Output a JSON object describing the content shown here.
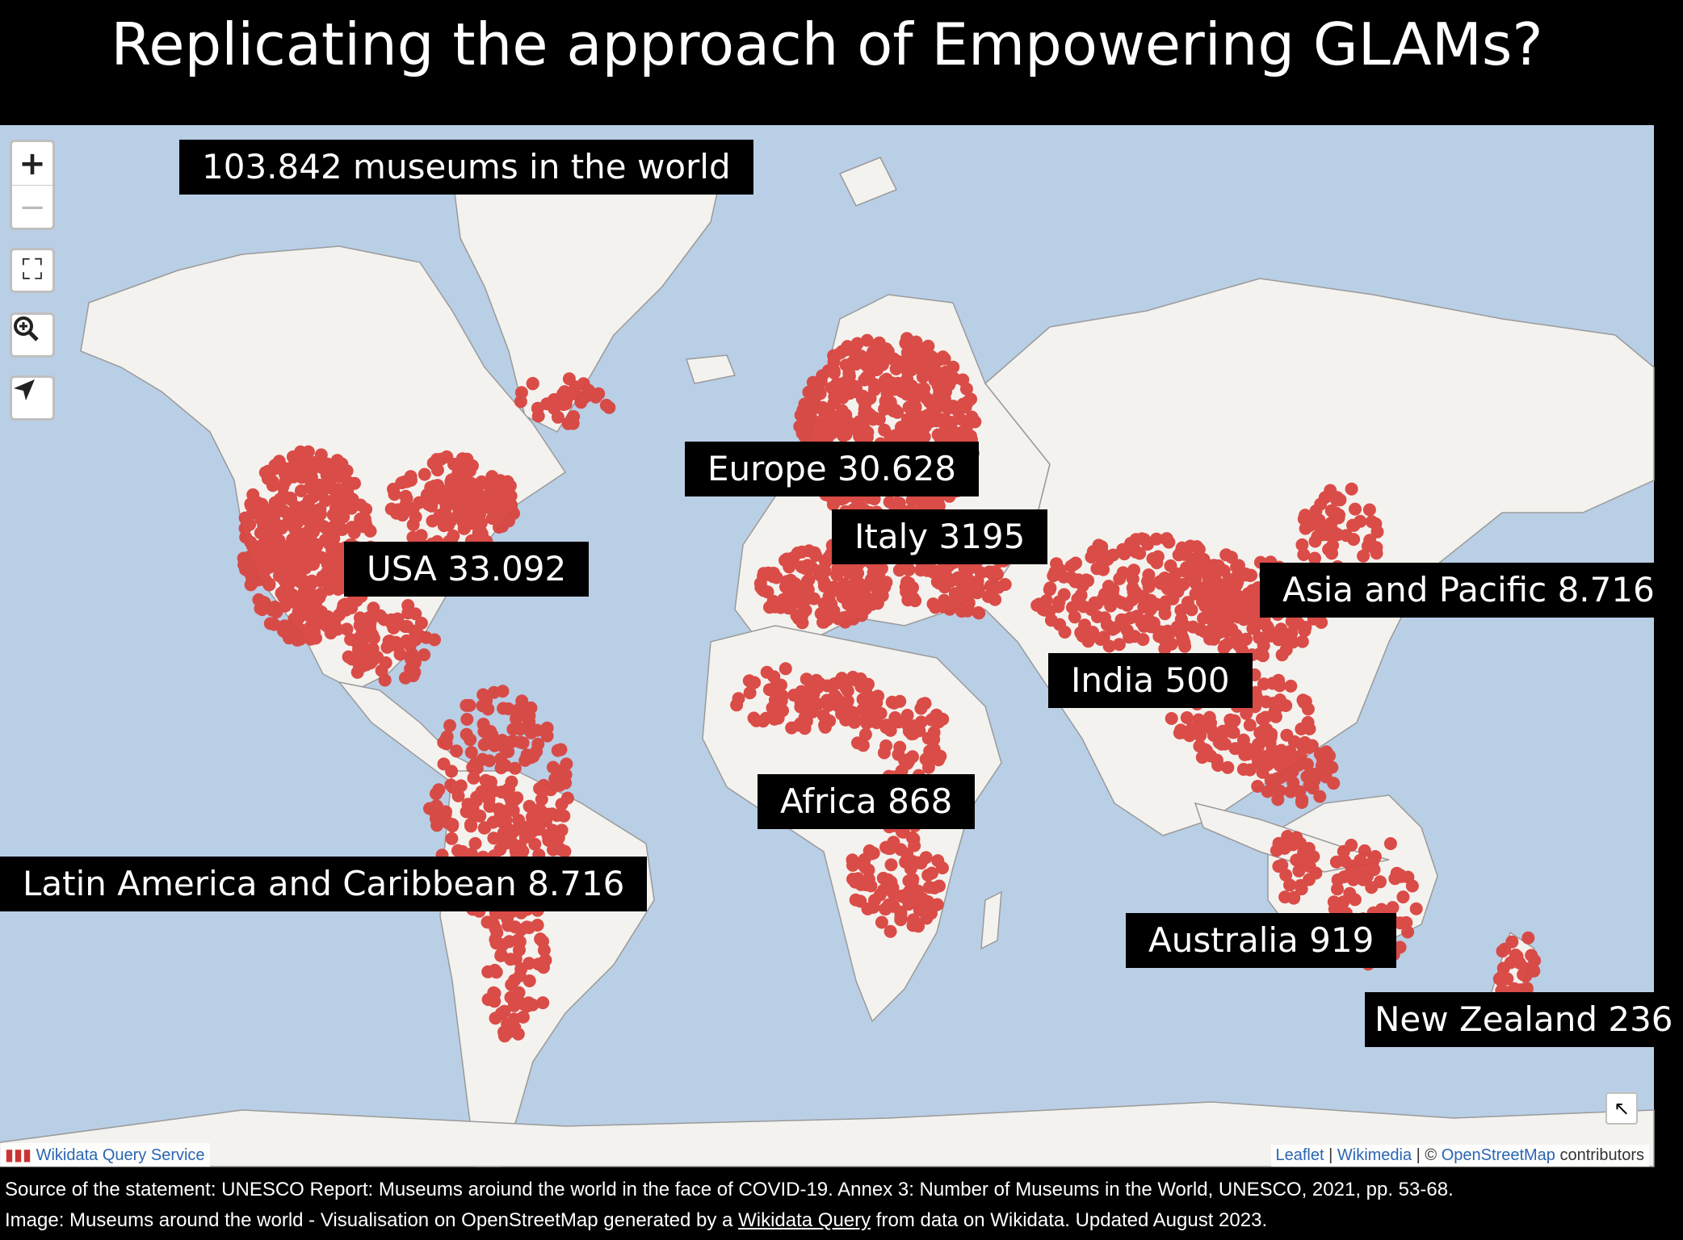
{
  "title": "Replicating the approach of Empowering GLAMs?",
  "map": {
    "controls": {
      "zoom_in": "+",
      "zoom_out": "−",
      "fullscreen_icon": "fullscreen-icon",
      "zoom_box_icon": "magnifier-icon",
      "locate_icon": "locate-arrow-icon"
    },
    "labels": {
      "world": "103.842 museums in the world",
      "europe": "Europe 30.628",
      "italy": "Italy 3195",
      "usa": "USA 33.092",
      "asia": "Asia and Pacific 8.716",
      "india": "India 500",
      "africa": "Africa 868",
      "latam": "Latin America and Caribbean 8.716",
      "australia": "Australia 919",
      "nz": "New Zealand 236"
    },
    "marker_color": "#d9443f",
    "water_color": "#b9cfe6",
    "land_color": "#f4f2ee",
    "wdqs": "Wikidata Query Service",
    "attribution": {
      "leaflet": "Leaflet",
      "sep1": " | ",
      "wikimedia": "Wikimedia",
      "sep2": " | © ",
      "osm": "OpenStreetMap",
      "contrib": " contributors"
    }
  },
  "footer": {
    "line1": "Source of the statement: UNESCO Report: Museums aroiund the world in the face of COVID-19. Annex 3: Number of Museums in the World, UNESCO, 2021, pp. 53-68.",
    "line2_a": "Image: Museums around the world - Visualisation on OpenStreetMap generated by a ",
    "line2_link": "Wikidata Query",
    "line2_b": " from data on Wikidata. Updated August 2023."
  }
}
